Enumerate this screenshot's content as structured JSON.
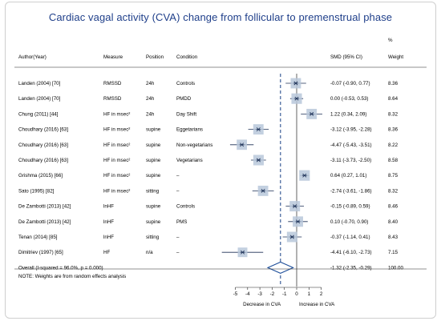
{
  "chart_data": {
    "type": "forest",
    "title": "Cardiac vagal activity (CVA) change from follicular to premenstrual phase",
    "columns": {
      "author": "Author(Year)",
      "measure": "Measure",
      "position": "Position",
      "condition": "Condition",
      "smd": "SMD (95% CI)",
      "weight_top": "%",
      "weight": "Weight"
    },
    "studies": [
      {
        "author": "Landen (2004) [70]",
        "measure": "RMSSD",
        "position": "24h",
        "condition": "Controls",
        "smd": -0.07,
        "lo": -0.9,
        "hi": 0.77,
        "ci_text": "-0.07 (-0.90, 0.77)",
        "weight": "8.36"
      },
      {
        "author": "Landen (2004) [70]",
        "measure": "RMSSD",
        "position": "24h",
        "condition": "PMDD",
        "smd": 0.0,
        "lo": -0.53,
        "hi": 0.53,
        "ci_text": "0.00 (-0.53, 0.53)",
        "weight": "8.64"
      },
      {
        "author": "Chung (2011) [44]",
        "measure": "HF in msec²",
        "position": "24h",
        "condition": "Day Shift",
        "smd": 1.22,
        "lo": 0.34,
        "hi": 2.09,
        "ci_text": "1.22 (0.34, 2.09)",
        "weight": "8.32"
      },
      {
        "author": "Choudhary (2016) [63]",
        "measure": "HF in msec²",
        "position": "supine",
        "condition": "Eggetarians",
        "smd": -3.12,
        "lo": -3.95,
        "hi": -2.28,
        "ci_text": "-3.12 (-3.95, -2.28)",
        "weight": "8.36"
      },
      {
        "author": "Choudhary (2016) [63]",
        "measure": "HF in msec²",
        "position": "supine",
        "condition": "Non-vegetarians",
        "smd": -4.47,
        "lo": -5.43,
        "hi": -3.51,
        "ci_text": "-4.47 (-5.43, -3.51)",
        "weight": "8.22"
      },
      {
        "author": "Choudhary (2016) [63]",
        "measure": "HF in msec²",
        "position": "supine",
        "condition": "Vegetarians",
        "smd": -3.11,
        "lo": -3.73,
        "hi": -2.5,
        "ci_text": "-3.11 (-3.73, -2.50)",
        "weight": "8.58"
      },
      {
        "author": "Grishma (2015) [66]",
        "measure": "HF in msec²",
        "position": "supine",
        "condition": "–",
        "smd": 0.64,
        "lo": 0.27,
        "hi": 1.01,
        "ci_text": "0.64 (0.27, 1.01)",
        "weight": "8.75"
      },
      {
        "author": "Sato (1995) [82]",
        "measure": "HF in msec²",
        "position": "sitting",
        "condition": "–",
        "smd": -2.74,
        "lo": -3.61,
        "hi": -1.86,
        "ci_text": "-2.74 (-3.61, -1.86)",
        "weight": "8.32"
      },
      {
        "author": "De Zambotti (2013) [42]",
        "measure": "lnHF",
        "position": "supine",
        "condition": "Controls",
        "smd": -0.15,
        "lo": -0.89,
        "hi": 0.59,
        "ci_text": "-0.15 (-0.89, 0.59)",
        "weight": "8.46"
      },
      {
        "author": "De Zambotti (2013) [42]",
        "measure": "lnHF",
        "position": "supine",
        "condition": "PMS",
        "smd": 0.1,
        "lo": -0.7,
        "hi": 0.9,
        "ci_text": "0.10 (-0.70, 0.90)",
        "weight": "8.40"
      },
      {
        "author": "Tenan (2014) [85]",
        "measure": "lnHF",
        "position": "sitting",
        "condition": "–",
        "smd": -0.37,
        "lo": -1.14,
        "hi": 0.41,
        "ci_text": "-0.37 (-1.14, 0.41)",
        "weight": "8.43"
      },
      {
        "author": "Dimitriev (1997) [65]",
        "measure": "HF",
        "position": "n/a",
        "condition": "–",
        "smd": -4.41,
        "lo": -6.1,
        "hi": -2.73,
        "ci_text": "-4.41 (-6.10, -2.73)",
        "weight": "7.15"
      }
    ],
    "overall": {
      "label": "Overall  (I-squared = 96.0%, p = 0.000)",
      "smd": -1.32,
      "lo": -2.35,
      "hi": -0.29,
      "ci_text": "-1.32 (-2.35, -0.29)",
      "weight": "100.00"
    },
    "note": "NOTE: Weights are from random effects analysis",
    "xticks": [
      -5,
      -4,
      -3,
      -2,
      -1,
      0,
      1,
      2
    ],
    "xtick_labels": [
      "-5",
      "-4",
      "-3",
      "-2",
      "-1",
      "0",
      "1",
      "2"
    ],
    "xlim": [
      -6.2,
      2.2
    ],
    "xlabel_left": "Decrease in CVA",
    "xlabel_right": "Increase in CVA",
    "colors": {
      "title": "#1f3f8a",
      "ci_line": "#1b2f55",
      "box": "#b8c8da",
      "dash": "#2a4f8f",
      "diamond": "#1f4f9a"
    }
  }
}
